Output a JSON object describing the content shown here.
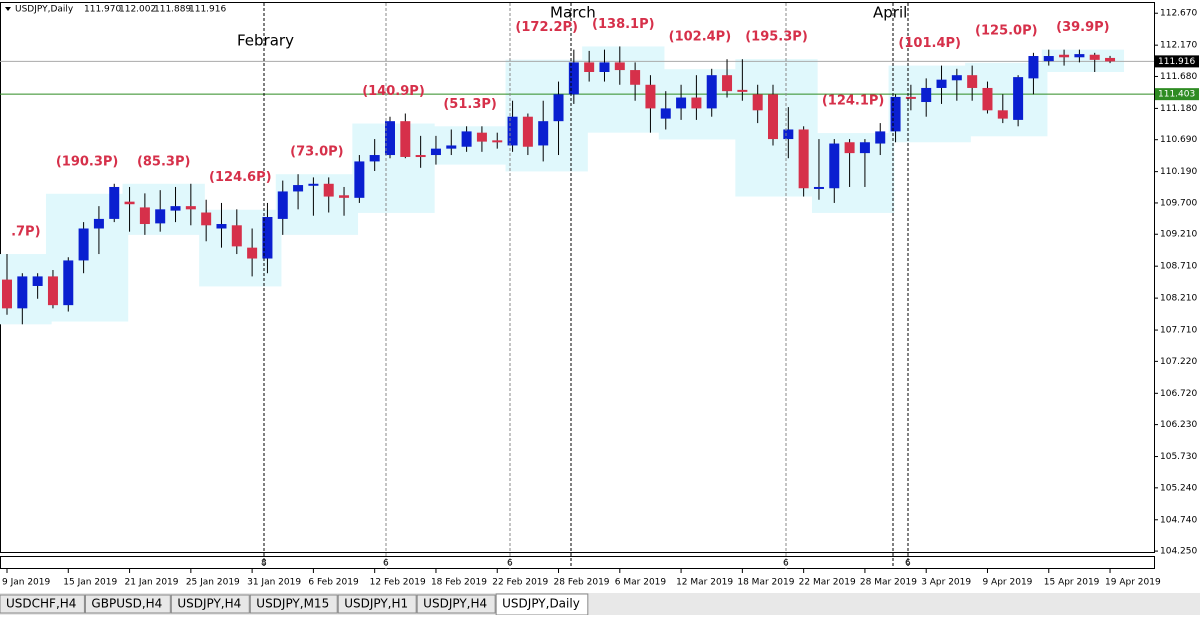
{
  "header": {
    "symbol": "USDJPY,Daily",
    "ohlc": [
      "111.970",
      "112.002",
      "111.889",
      "111.916"
    ]
  },
  "chart_data": {
    "type": "candlestick",
    "categories": [
      "9 Jan 2019",
      null,
      null,
      null,
      "15 Jan 2019",
      null,
      null,
      null,
      "21 Jan 2019",
      null,
      null,
      null,
      "25 Jan 2019",
      null,
      null,
      null,
      "31 Jan 2019",
      null,
      null,
      null,
      "6 Feb 2019",
      null,
      null,
      null,
      "12 Feb 2019",
      null,
      null,
      null,
      "18 Feb 2019",
      null,
      null,
      null,
      "22 Feb 2019",
      null,
      null,
      null,
      "28 Feb 2019",
      null,
      null,
      null,
      "6 Mar 2019",
      null,
      null,
      null,
      "12 Mar 2019",
      null,
      null,
      null,
      "18 Mar 2019",
      null,
      null,
      null,
      "22 Mar 2019",
      null,
      null,
      null,
      "28 Mar 2019",
      null,
      null,
      null,
      "3 Apr 2019",
      null,
      null,
      null,
      "9 Apr 2019",
      null,
      null,
      null,
      "15 Apr 2019",
      null,
      null,
      null,
      "19 Apr 2019"
    ],
    "open": [
      108.5,
      108.05,
      108.4,
      108.55,
      108.1,
      108.8,
      109.3,
      109.45,
      109.72,
      109.63,
      109.38,
      109.58,
      109.65,
      109.55,
      109.3,
      109.35,
      109.0,
      108.83,
      109.45,
      109.88,
      109.97,
      110.0,
      109.82,
      109.78,
      110.35,
      110.45,
      110.98,
      110.45,
      110.45,
      110.55,
      110.58,
      110.8,
      110.68,
      110.6,
      111.05,
      110.6,
      110.98,
      111.4,
      111.9,
      111.75,
      111.9,
      111.78,
      111.55,
      111.02,
      111.18,
      111.35,
      111.18,
      111.7,
      111.47,
      111.4,
      111.4,
      110.7,
      110.85,
      109.93,
      109.93,
      110.65,
      110.48,
      110.63,
      110.82,
      111.36,
      111.28,
      111.5,
      111.62,
      111.7,
      111.5,
      111.15,
      111.0,
      111.65,
      111.92,
      112.02,
      111.98,
      112.02,
      111.97
    ],
    "high": [
      108.9,
      108.6,
      108.6,
      108.65,
      108.85,
      109.4,
      109.65,
      110.0,
      109.95,
      109.85,
      109.9,
      109.95,
      110.0,
      109.75,
      109.7,
      109.6,
      109.3,
      109.7,
      110.05,
      110.15,
      110.1,
      110.1,
      109.95,
      110.45,
      110.7,
      111.05,
      111.1,
      110.75,
      110.75,
      110.85,
      110.9,
      110.9,
      110.8,
      111.3,
      111.1,
      111.3,
      111.6,
      112.1,
      112.08,
      112.1,
      112.15,
      111.9,
      111.7,
      111.45,
      111.55,
      111.7,
      111.8,
      111.95,
      111.95,
      111.55,
      111.55,
      111.2,
      110.9,
      110.7,
      110.7,
      110.7,
      110.7,
      110.95,
      111.4,
      111.55,
      111.65,
      111.85,
      111.8,
      111.85,
      111.6,
      111.4,
      111.7,
      112.05,
      112.1,
      112.1,
      112.1,
      112.05,
      112.002
    ],
    "low": [
      107.95,
      107.8,
      108.2,
      108.05,
      108.0,
      108.6,
      108.9,
      109.4,
      109.25,
      109.2,
      109.25,
      109.4,
      109.35,
      109.1,
      109.0,
      108.9,
      108.55,
      108.6,
      109.2,
      109.6,
      109.5,
      109.55,
      109.5,
      109.7,
      110.2,
      110.4,
      110.4,
      110.25,
      110.3,
      110.45,
      110.5,
      110.5,
      110.55,
      110.5,
      110.45,
      110.35,
      110.45,
      111.25,
      111.6,
      111.6,
      111.55,
      111.3,
      110.8,
      110.85,
      111.0,
      111.0,
      111.05,
      111.35,
      111.3,
      110.95,
      110.6,
      110.4,
      109.8,
      109.75,
      109.7,
      109.95,
      109.95,
      110.45,
      110.65,
      111.15,
      111.05,
      111.25,
      111.3,
      111.3,
      111.1,
      110.95,
      110.9,
      111.4,
      111.85,
      111.85,
      111.9,
      111.75,
      111.889
    ],
    "close": [
      108.05,
      108.55,
      108.55,
      108.1,
      108.8,
      109.3,
      109.45,
      109.95,
      109.68,
      109.37,
      109.6,
      109.65,
      109.6,
      109.35,
      109.37,
      109.02,
      108.83,
      109.48,
      109.88,
      109.98,
      110.0,
      109.8,
      109.78,
      110.35,
      110.45,
      110.98,
      110.42,
      110.42,
      110.55,
      110.6,
      110.82,
      110.66,
      110.65,
      111.05,
      110.58,
      110.98,
      111.4,
      111.9,
      111.75,
      111.9,
      111.78,
      111.55,
      111.18,
      111.18,
      111.35,
      111.18,
      111.7,
      111.45,
      111.45,
      111.15,
      110.7,
      110.85,
      109.93,
      109.95,
      110.63,
      110.48,
      110.65,
      110.82,
      111.36,
      111.33,
      111.5,
      111.63,
      111.7,
      111.5,
      111.15,
      111.02,
      111.67,
      112.0,
      112.0,
      111.98,
      112.03,
      111.94,
      111.916
    ],
    "up_color": "#0a1fd0",
    "down_color": "#d6304a",
    "range_color": "#e0f8fc",
    "range_labels": [
      ".7P)",
      "(190.3P)",
      "(85.3P)",
      "(124.6P)",
      "(73.0P)",
      "(140.9P)",
      "(51.3P)",
      "(172.2P)",
      "(138.1P)",
      "(102.4P)",
      "(195.3P)",
      "(124.1P)",
      "(101.4P)",
      "(125.0P)",
      "(39.9P)"
    ],
    "months": [
      "Febrary",
      "March",
      "April"
    ],
    "period_markers": [
      "8",
      "6",
      "6",
      "6",
      "6"
    ],
    "ylim": [
      104.22,
      112.83
    ],
    "yticks": [
      {
        "value": 112.67,
        "label": "112.670"
      },
      {
        "value": 112.17,
        "label": "112.170"
      },
      {
        "value": 111.68,
        "label": "111.680"
      },
      {
        "value": 111.18,
        "label": "111.180"
      },
      {
        "value": 110.69,
        "label": "110.690"
      },
      {
        "value": 110.19,
        "label": "110.190"
      },
      {
        "value": 109.7,
        "label": "109.700"
      },
      {
        "value": 109.21,
        "label": "109.210"
      },
      {
        "value": 108.71,
        "label": "108.710"
      },
      {
        "value": 108.21,
        "label": "108.210"
      },
      {
        "value": 107.71,
        "label": "107.710"
      },
      {
        "value": 107.22,
        "label": "107.220"
      },
      {
        "value": 106.72,
        "label": "106.720"
      },
      {
        "value": 106.23,
        "label": "106.230"
      },
      {
        "value": 105.73,
        "label": "105.730"
      },
      {
        "value": 105.24,
        "label": "105.240"
      },
      {
        "value": 104.74,
        "label": "104.740"
      },
      {
        "value": 104.25,
        "label": "104.250"
      }
    ],
    "price_line": {
      "value": 111.916,
      "label": "111.916"
    },
    "level_line": {
      "value": 111.403,
      "label": "111.403",
      "color": "#2e8b22"
    }
  },
  "tabs": [
    "USDCHF,H4",
    "GBPUSD,H4",
    "USDJPY,H4",
    "USDJPY,M15",
    "USDJPY,H1",
    "USDJPY,H4",
    "USDJPY,Daily"
  ]
}
